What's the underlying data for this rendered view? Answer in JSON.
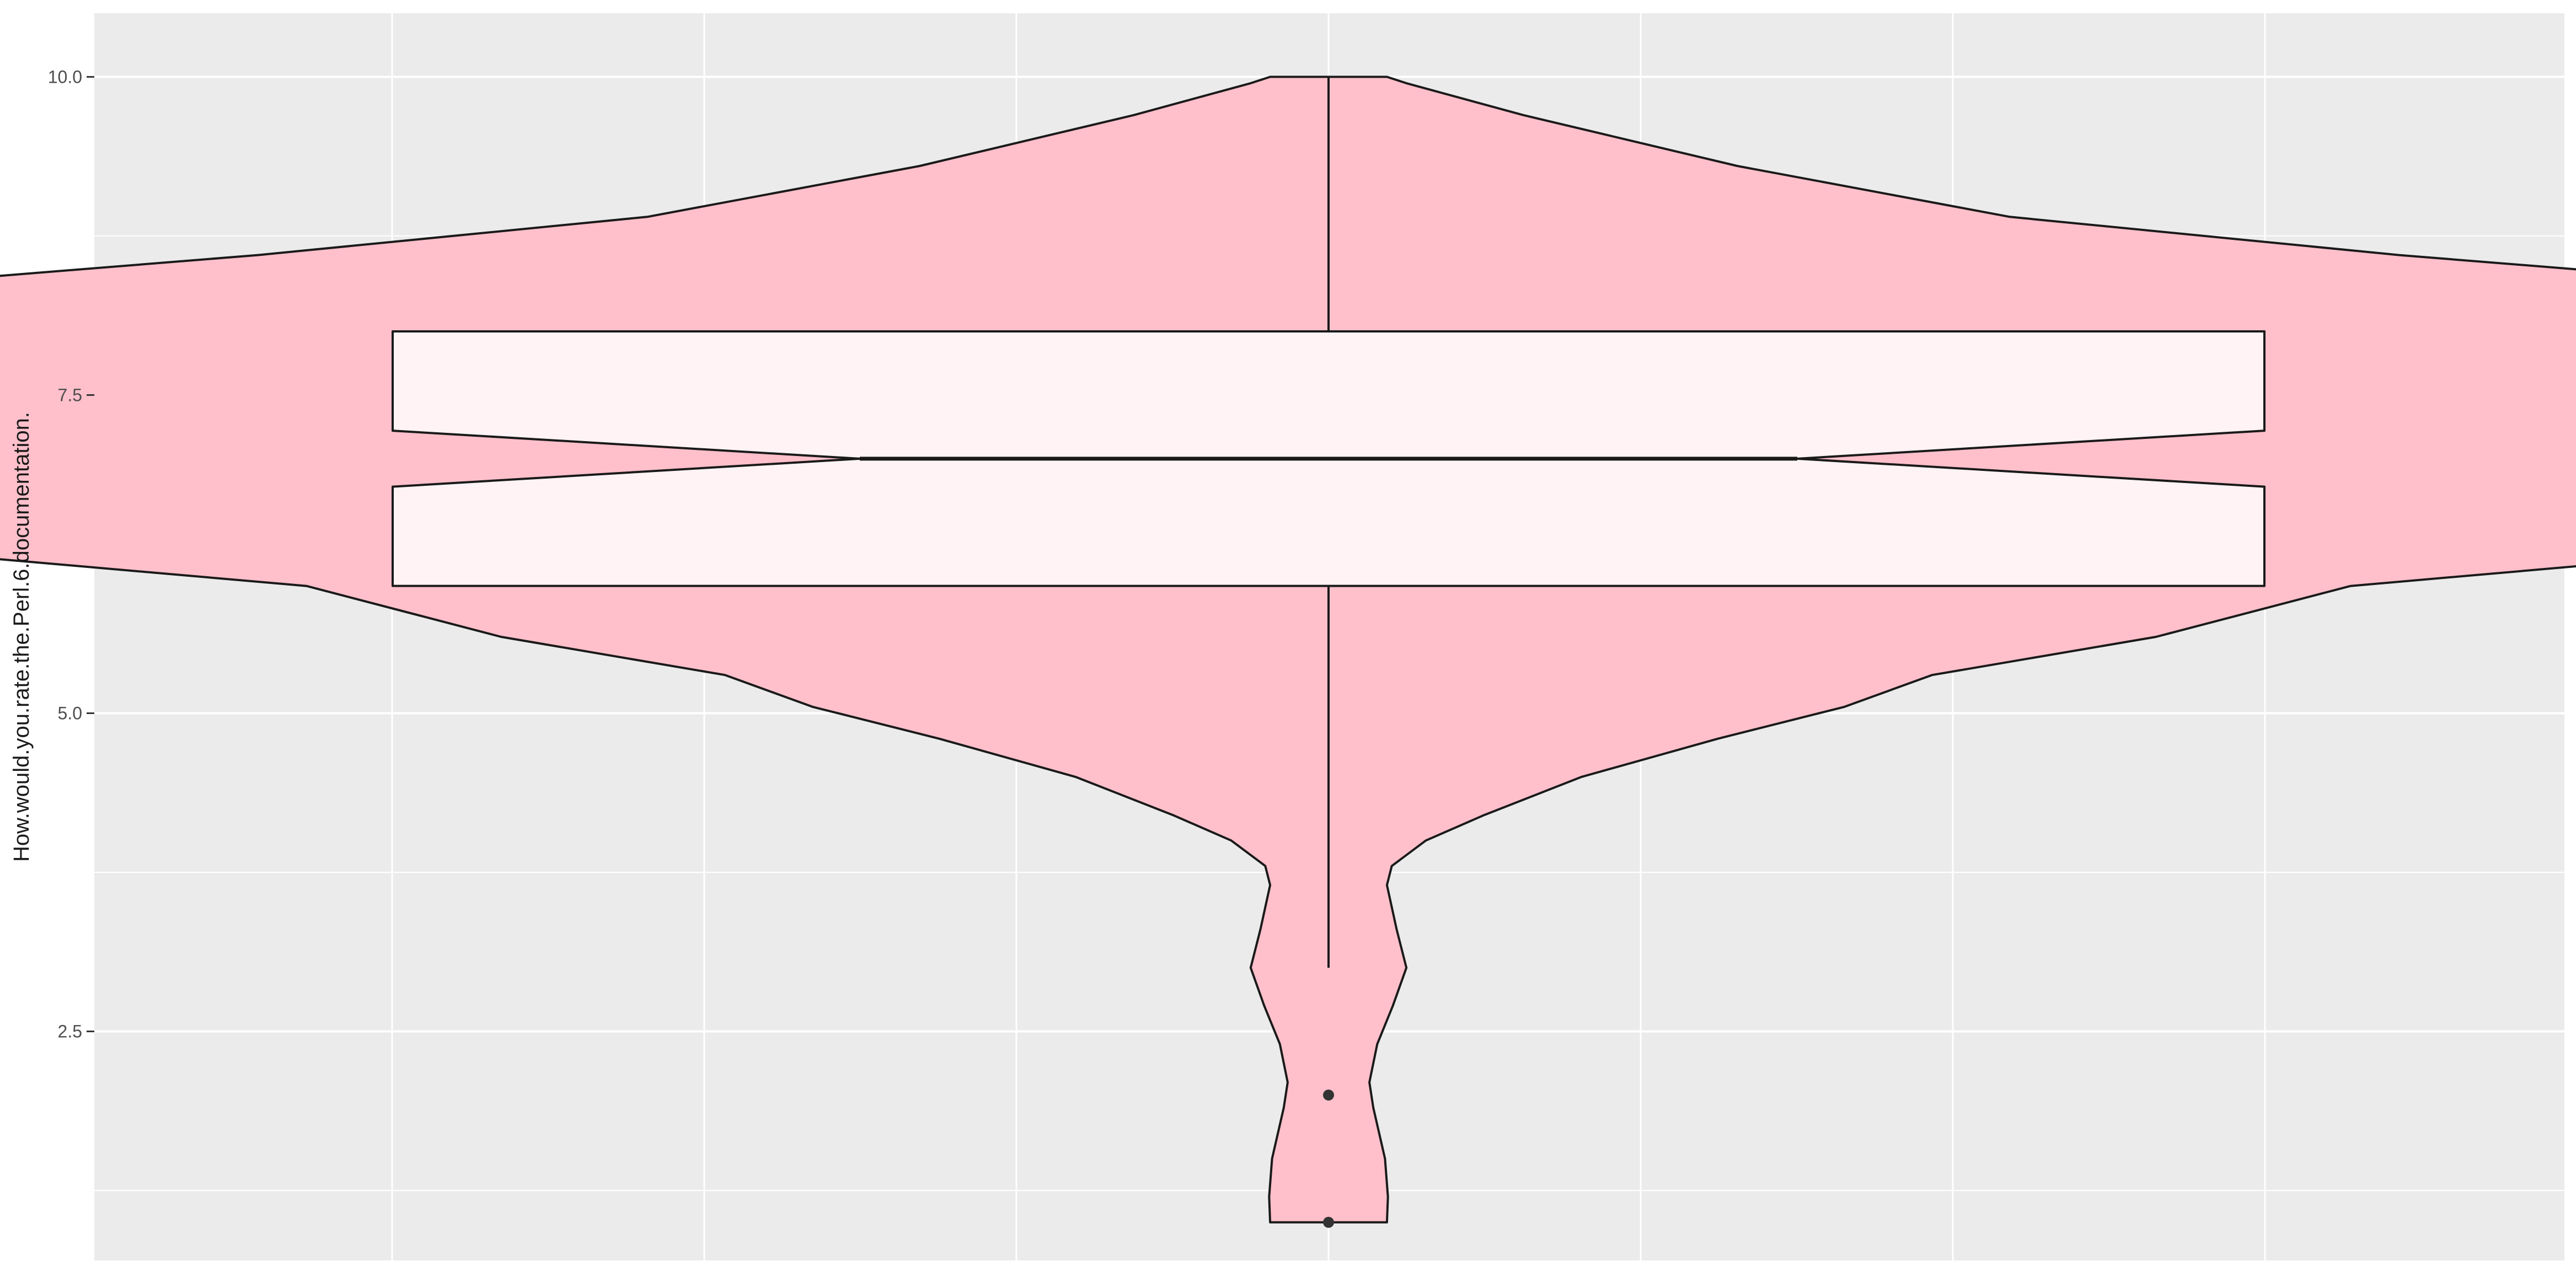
{
  "chart_data": {
    "type": "violin",
    "title": "",
    "xlabel": "",
    "ylabel": "How.would.you.rate.the.Perl.6.documentation.",
    "ylim": [
      0.7,
      10.5
    ],
    "y_ticks": [
      2.5,
      5.0,
      7.5,
      10.0
    ],
    "y_tick_labels": [
      "2.5",
      "5.0",
      "7.5",
      "10.0"
    ],
    "y_minor_ticks": [
      1.25,
      3.75,
      6.25,
      8.75
    ],
    "x_categories": [],
    "grid": true,
    "legend": "none",
    "violin": {
      "density_profile": [
        {
          "y": 1.0,
          "w": 0.06
        },
        {
          "y": 1.2,
          "w": 0.061
        },
        {
          "y": 1.5,
          "w": 0.058
        },
        {
          "y": 1.9,
          "w": 0.046
        },
        {
          "y": 2.1,
          "w": 0.042
        },
        {
          "y": 2.4,
          "w": 0.05
        },
        {
          "y": 2.7,
          "w": 0.066
        },
        {
          "y": 3.0,
          "w": 0.08
        },
        {
          "y": 3.3,
          "w": 0.07
        },
        {
          "y": 3.65,
          "w": 0.06
        },
        {
          "y": 3.8,
          "w": 0.065
        },
        {
          "y": 4.0,
          "w": 0.1
        },
        {
          "y": 4.2,
          "w": 0.16
        },
        {
          "y": 4.5,
          "w": 0.26
        },
        {
          "y": 4.8,
          "w": 0.4
        },
        {
          "y": 5.05,
          "w": 0.53
        },
        {
          "y": 5.3,
          "w": 0.62
        },
        {
          "y": 5.6,
          "w": 0.85
        },
        {
          "y": 6.0,
          "w": 1.05
        },
        {
          "y": 6.4,
          "w": 1.65
        },
        {
          "y": 6.8,
          "w": 2.25
        },
        {
          "y": 7.1,
          "w": 2.4
        },
        {
          "y": 7.35,
          "w": 2.3
        },
        {
          "y": 7.6,
          "w": 2.2
        },
        {
          "y": 7.85,
          "w": 2.22
        },
        {
          "y": 8.2,
          "w": 1.75
        },
        {
          "y": 8.6,
          "w": 1.1
        },
        {
          "y": 8.9,
          "w": 0.7
        },
        {
          "y": 9.3,
          "w": 0.42
        },
        {
          "y": 9.7,
          "w": 0.2
        },
        {
          "y": 9.95,
          "w": 0.08
        },
        {
          "y": 10.0,
          "w": 0.06
        }
      ]
    },
    "boxplot": {
      "min_whisker": 3,
      "q1": 6,
      "median": 7,
      "q3": 8,
      "max_whisker": 10,
      "notch_lower": 6.78,
      "notch_upper": 7.22,
      "outliers": [
        2,
        1
      ]
    },
    "colors": {
      "violin_fill": "#FFC0CB",
      "box_fill": "#FFFFFF",
      "outline": "#1a1a1a",
      "panel_background": "#EBEBEB",
      "grid": "#FFFFFF"
    }
  }
}
